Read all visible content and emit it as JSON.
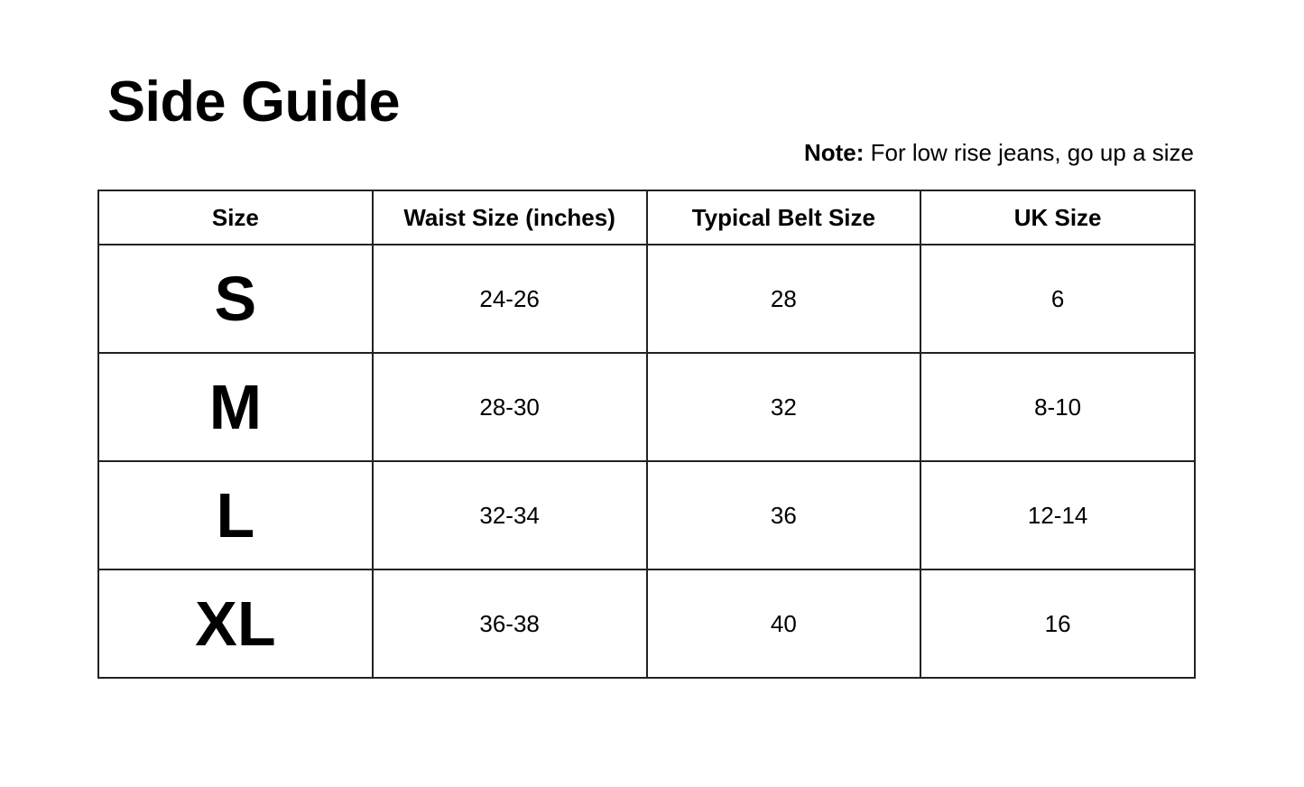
{
  "title": "Side Guide",
  "note": {
    "label": "Note:",
    "text": " For low rise jeans, go up a size"
  },
  "table": {
    "headers": [
      "Size",
      "Waist Size (inches)",
      "Typical Belt Size",
      "UK Size"
    ],
    "rows": [
      [
        "S",
        "24-26",
        "28",
        "6"
      ],
      [
        "M",
        "28-30",
        "32",
        "8-10"
      ],
      [
        "L",
        "32-34",
        "36",
        "12-14"
      ],
      [
        "XL",
        "36-38",
        "40",
        "16"
      ]
    ]
  }
}
